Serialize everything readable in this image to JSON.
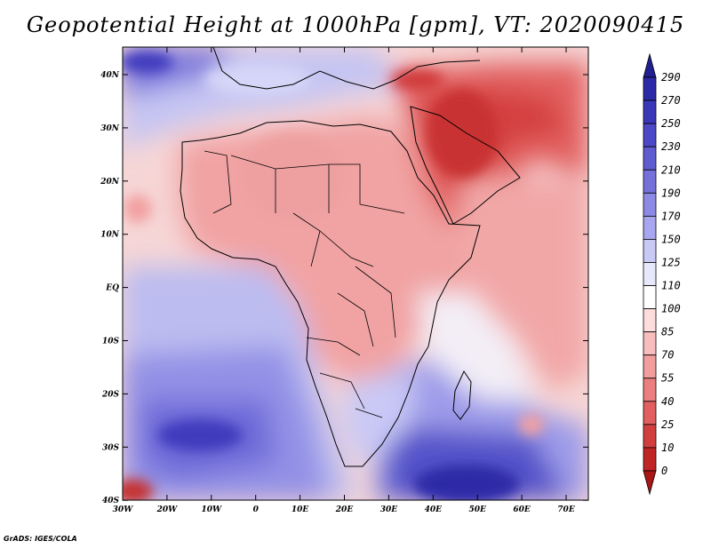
{
  "title": "Geopotential Height at 1000hPa [gpm], VT: 2020090415",
  "footer": "GrADS: IGES/COLA",
  "map": {
    "region": "Africa and Middle East",
    "variable": "Geopotential Height",
    "level": "1000hPa",
    "units": "gpm",
    "valid_time": "2020090415"
  },
  "axes": {
    "lon_ticks": [
      "30W",
      "20W",
      "10W",
      "0",
      "10E",
      "20E",
      "30E",
      "40E",
      "50E",
      "60E",
      "70E"
    ],
    "lat_ticks": [
      "40N",
      "30N",
      "20N",
      "10N",
      "EQ",
      "10S",
      "20S",
      "30S",
      "40S"
    ]
  },
  "colorbar": {
    "labels": [
      "290",
      "270",
      "250",
      "230",
      "210",
      "190",
      "170",
      "150",
      "125",
      "110",
      "100",
      "85",
      "70",
      "55",
      "40",
      "25",
      "10",
      "0"
    ],
    "colors": [
      "#211f8f",
      "#2c29a6",
      "#3b37b9",
      "#4c48c6",
      "#5f5cd1",
      "#7571db",
      "#8c8ae4",
      "#a7a6ee",
      "#c9c9f6",
      "#e8e8fc",
      "#ffffff",
      "#fcdcdc",
      "#f8bdbd",
      "#f29e9e",
      "#eb7e7e",
      "#e15f5f",
      "#d23f3f",
      "#c02525",
      "#a81616"
    ]
  }
}
